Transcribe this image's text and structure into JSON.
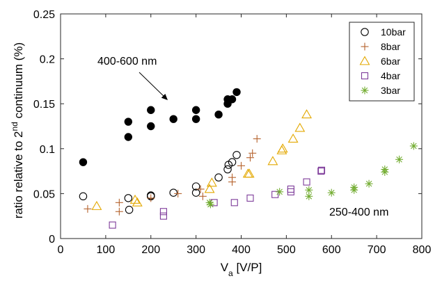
{
  "chart_data": {
    "type": "scatter",
    "xlabel": {
      "main": "V",
      "sub": "a",
      "rest": " [V/P]"
    },
    "ylabel": {
      "pre": "ratio relative to 2",
      "sup": "nd",
      "post": " continuum (%)"
    },
    "xlim": [
      0,
      800
    ],
    "ylim": [
      0,
      0.25
    ],
    "xticks": [
      0,
      100,
      200,
      300,
      400,
      500,
      600,
      700,
      800
    ],
    "yticks": [
      0,
      0.05,
      0.1,
      0.15,
      0.2,
      0.25
    ],
    "ytick_labels": [
      "0",
      "0.05",
      "0.1",
      "0.15",
      "0.2",
      "0.25"
    ],
    "grid": false,
    "legend_position": "top-right",
    "annotations": [
      {
        "text": "400-600 nm",
        "arrow": true
      },
      {
        "text": "250-400 nm",
        "arrow": false
      }
    ],
    "series": [
      {
        "name": "400-600 nm",
        "marker": "filled-circle",
        "color": "#000000",
        "legend": false,
        "x": [
          50,
          150,
          150,
          200,
          200,
          250,
          300,
          300,
          350,
          370,
          370,
          380,
          390
        ],
        "y": [
          0.085,
          0.13,
          0.113,
          0.143,
          0.125,
          0.133,
          0.143,
          0.133,
          0.138,
          0.15,
          0.155,
          0.155,
          0.163
        ]
      },
      {
        "name": "10bar",
        "marker": "open-circle",
        "color": "#000000",
        "legend": true,
        "x": [
          50,
          150,
          152,
          200,
          200,
          250,
          300,
          300,
          350,
          370,
          372,
          380,
          390
        ],
        "y": [
          0.047,
          0.045,
          0.032,
          0.048,
          0.047,
          0.051,
          0.058,
          0.051,
          0.068,
          0.077,
          0.082,
          0.085,
          0.093
        ]
      },
      {
        "name": "8bar",
        "marker": "plus",
        "color": "#b5622c",
        "legend": true,
        "x": [
          60,
          130,
          130,
          200,
          260,
          310,
          315,
          380,
          380,
          400,
          420,
          425,
          435
        ],
        "y": [
          0.033,
          0.04,
          0.03,
          0.045,
          0.05,
          0.055,
          0.047,
          0.063,
          0.068,
          0.081,
          0.09,
          0.095,
          0.111
        ]
      },
      {
        "name": "6bar",
        "marker": "open-triangle",
        "color": "#e3a800",
        "legend": true,
        "x": [
          80,
          165,
          170,
          330,
          335,
          415,
          418,
          470,
          490,
          492,
          515,
          530,
          545
        ],
        "y": [
          0.036,
          0.043,
          0.04,
          0.055,
          0.062,
          0.072,
          0.072,
          0.086,
          0.098,
          0.1,
          0.111,
          0.123,
          0.138
        ]
      },
      {
        "name": "4bar",
        "marker": "open-square",
        "color": "#7d3a99",
        "legend": true,
        "x": [
          115,
          228,
          228,
          340,
          385,
          420,
          475,
          510,
          510,
          545,
          577,
          578
        ],
        "y": [
          0.015,
          0.025,
          0.03,
          0.04,
          0.04,
          0.045,
          0.049,
          0.052,
          0.055,
          0.063,
          0.075,
          0.076
        ]
      },
      {
        "name": "3bar",
        "marker": "asterisk",
        "color": "#72ac30",
        "legend": true,
        "x": [
          330,
          332,
          485,
          550,
          550,
          600,
          650,
          650,
          683,
          718,
          718,
          750,
          782
        ],
        "y": [
          0.04,
          0.038,
          0.052,
          0.054,
          0.047,
          0.051,
          0.054,
          0.057,
          0.061,
          0.074,
          0.077,
          0.088,
          0.103
        ]
      }
    ]
  }
}
